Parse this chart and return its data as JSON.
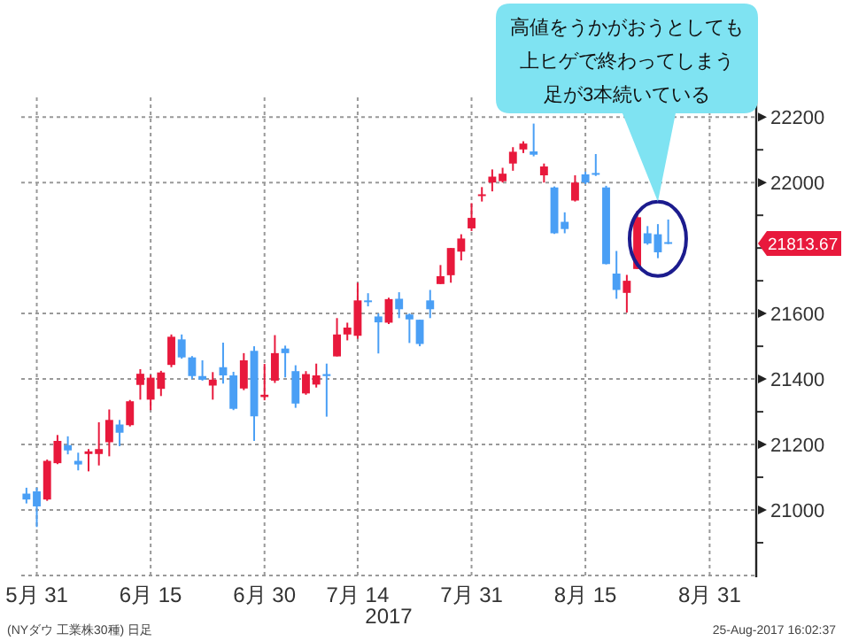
{
  "chart_data": {
    "type": "candlestick",
    "categories": [
      null,
      "5月 31",
      null,
      null,
      null,
      null,
      null,
      null,
      null,
      null,
      null,
      null,
      "6月 15",
      null,
      null,
      null,
      null,
      null,
      null,
      null,
      null,
      null,
      null,
      "6月 30",
      null,
      null,
      null,
      null,
      null,
      null,
      null,
      null,
      "7月 14",
      null,
      null,
      null,
      null,
      null,
      null,
      null,
      null,
      null,
      null,
      "7月 31",
      null,
      null,
      null,
      null,
      null,
      null,
      null,
      null,
      null,
      null,
      "8月 15",
      null,
      null,
      null,
      null,
      null,
      null,
      null,
      null,
      null,
      null,
      null,
      "8月 31",
      null,
      null,
      null,
      null
    ],
    "ohlc": [
      [
        21050,
        21068,
        21020,
        21032
      ],
      [
        21057,
        21068,
        20948,
        21011
      ],
      [
        21032,
        21154,
        21028,
        21150
      ],
      [
        21143,
        21229,
        21140,
        21211
      ],
      [
        21198,
        21225,
        21170,
        21182
      ],
      [
        21150,
        21175,
        21121,
        21139
      ],
      [
        21171,
        21186,
        21118,
        21179
      ],
      [
        21171,
        21268,
        21136,
        21186
      ],
      [
        21207,
        21307,
        21164,
        21275
      ],
      [
        21261,
        21275,
        21195,
        21236
      ],
      [
        21259,
        21336,
        21255,
        21332
      ],
      [
        21382,
        21430,
        21337,
        21416
      ],
      [
        21337,
        21413,
        21305,
        21404
      ],
      [
        21370,
        21425,
        21348,
        21420
      ],
      [
        21443,
        21536,
        21436,
        21529
      ],
      [
        21521,
        21536,
        21462,
        21466
      ],
      [
        21466,
        21470,
        21400,
        21409
      ],
      [
        21409,
        21457,
        21395,
        21398
      ],
      [
        21380,
        21421,
        21337,
        21398
      ],
      [
        21436,
        21511,
        21386,
        21411
      ],
      [
        21411,
        21422,
        21305,
        21309
      ],
      [
        21371,
        21479,
        21366,
        21457
      ],
      [
        21486,
        21500,
        21211,
        21286
      ],
      [
        21345,
        21446,
        21335,
        21352
      ],
      [
        21395,
        21534,
        21388,
        21479
      ],
      [
        21493,
        21502,
        21405,
        21479
      ],
      [
        21424,
        21442,
        21312,
        21325
      ],
      [
        21356,
        21424,
        21352,
        21415
      ],
      [
        21383,
        21447,
        21374,
        21411
      ],
      [
        21415,
        21447,
        21285,
        21409
      ],
      [
        21469,
        21586,
        21469,
        21536
      ],
      [
        21536,
        21572,
        21518,
        21557
      ],
      [
        21532,
        21694,
        21523,
        21640
      ],
      [
        21640,
        21662,
        21622,
        21636
      ],
      [
        21591,
        21600,
        21478,
        21573
      ],
      [
        21572,
        21648,
        21568,
        21644
      ],
      [
        21645,
        21665,
        21586,
        21613
      ],
      [
        21597,
        21600,
        21510,
        21582
      ],
      [
        21581,
        21581,
        21500,
        21507
      ],
      [
        21640,
        21672,
        21586,
        21613
      ],
      [
        21690,
        21748,
        21690,
        21714
      ],
      [
        21717,
        21800,
        21694,
        21800
      ],
      [
        21789,
        21842,
        21762,
        21829
      ],
      [
        21860,
        21937,
        21852,
        21892
      ],
      [
        21960,
        21986,
        21942,
        21964
      ],
      [
        22000,
        22040,
        21973,
        22018
      ],
      [
        22004,
        22045,
        22000,
        22027
      ],
      [
        22058,
        22108,
        22036,
        22094
      ],
      [
        22101,
        22126,
        22090,
        22119
      ],
      [
        22095,
        22180,
        22080,
        22085
      ],
      [
        22022,
        22058,
        22000,
        22049
      ],
      [
        21985,
        21988,
        21843,
        21845
      ],
      [
        21880,
        21909,
        21845,
        21858
      ],
      [
        21945,
        22022,
        21942,
        22000
      ],
      [
        22025,
        22033,
        21995,
        22000
      ],
      [
        22029,
        22087,
        22020,
        22025
      ],
      [
        21985,
        21990,
        21750,
        21751
      ],
      [
        21722,
        21791,
        21645,
        21672
      ],
      [
        21663,
        21718,
        21603,
        21700
      ],
      [
        21736,
        21913,
        21736,
        21894
      ],
      [
        21845,
        21867,
        21810,
        21814
      ],
      [
        21842,
        21873,
        21769,
        21787
      ],
      [
        21818,
        21887,
        21812,
        21814
      ],
      null,
      null,
      null,
      null,
      null,
      null,
      null,
      null
    ],
    "colors": [
      "#4a9ff5",
      "#4a9ff5",
      "#e8193c",
      "#e8193c",
      "#4a9ff5",
      "#4a9ff5",
      "#e8193c",
      "#e8193c",
      "#e8193c",
      "#4a9ff5",
      "#e8193c",
      "#e8193c",
      "#e8193c",
      "#e8193c",
      "#e8193c",
      "#4a9ff5",
      "#4a9ff5",
      "#4a9ff5",
      "#e8193c",
      "#4a9ff5",
      "#4a9ff5",
      "#e8193c",
      "#4a9ff5",
      "#e8193c",
      "#e8193c",
      "#4a9ff5",
      "#4a9ff5",
      "#e8193c",
      "#e8193c",
      "#4a9ff5",
      "#e8193c",
      "#e8193c",
      "#e8193c",
      "#4a9ff5",
      "#4a9ff5",
      "#e8193c",
      "#4a9ff5",
      "#4a9ff5",
      "#4a9ff5",
      "#4a9ff5",
      "#e8193c",
      "#e8193c",
      "#e8193c",
      "#e8193c",
      "#e8193c",
      "#e8193c",
      "#e8193c",
      "#e8193c",
      "#e8193c",
      "#4a9ff5",
      "#e8193c",
      "#4a9ff5",
      "#4a9ff5",
      "#e8193c",
      "#4a9ff5",
      "#4a9ff5",
      "#4a9ff5",
      "#4a9ff5",
      "#e8193c",
      "#e8193c",
      "#4a9ff5",
      "#4a9ff5",
      "#4a9ff5",
      null,
      null,
      null,
      null,
      null,
      null,
      null,
      null
    ],
    "ylim": [
      20800,
      22260
    ],
    "yticks": [
      {
        "value": 20900,
        "label": null
      },
      21000,
      {
        "value": 21100,
        "label": null
      },
      21200,
      {
        "value": 21300,
        "label": null
      },
      21400,
      {
        "value": 21500,
        "label": null
      },
      21600,
      {
        "value": 21700,
        "label": null
      },
      {
        "value": 21800,
        "label": null
      },
      {
        "value": 21900,
        "label": null
      },
      22000,
      {
        "value": 22100,
        "label": null
      },
      22200
    ],
    "grid": true,
    "xlabel": "2017",
    "annotations": [
      "高値をうかがおうとしても",
      "上ヒゲで終わってしまう",
      "足が3本続いている",
      "21813.67",
      "(NYダウ 工業株30種) 日足",
      "25-Aug-2017 16:02:37"
    ]
  }
}
